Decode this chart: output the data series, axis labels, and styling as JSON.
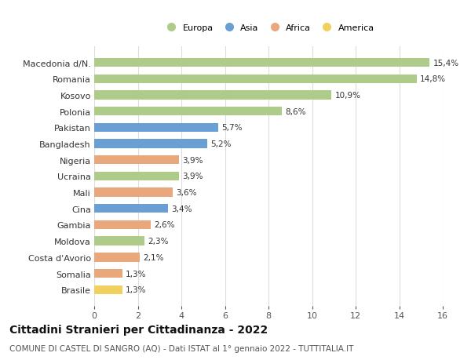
{
  "categories": [
    "Brasile",
    "Somalia",
    "Costa d'Avorio",
    "Moldova",
    "Gambia",
    "Cina",
    "Mali",
    "Ucraina",
    "Nigeria",
    "Bangladesh",
    "Pakistan",
    "Polonia",
    "Kosovo",
    "Romania",
    "Macedonia d/N."
  ],
  "values": [
    1.3,
    1.3,
    2.1,
    2.3,
    2.6,
    3.4,
    3.6,
    3.9,
    3.9,
    5.2,
    5.7,
    8.6,
    10.9,
    14.8,
    15.4
  ],
  "continents": [
    "America",
    "Africa",
    "Africa",
    "Europa",
    "Africa",
    "Asia",
    "Africa",
    "Europa",
    "Africa",
    "Asia",
    "Asia",
    "Europa",
    "Europa",
    "Europa",
    "Europa"
  ],
  "colors": {
    "Europa": "#AECB8A",
    "Asia": "#6A9FD4",
    "Africa": "#E8A87C",
    "America": "#F0D060"
  },
  "legend_labels": [
    "Europa",
    "Asia",
    "Africa",
    "America"
  ],
  "legend_colors": [
    "#AECB8A",
    "#6A9FD4",
    "#E8A87C",
    "#F0D060"
  ],
  "title": "Cittadini Stranieri per Cittadinanza - 2022",
  "subtitle": "COMUNE DI CASTEL DI SANGRO (AQ) - Dati ISTAT al 1° gennaio 2022 - TUTTITALIA.IT",
  "xlim": [
    0,
    16
  ],
  "xticks": [
    0,
    2,
    4,
    6,
    8,
    10,
    12,
    14,
    16
  ],
  "background_color": "#ffffff",
  "grid_color": "#dddddd",
  "bar_height": 0.55,
  "title_fontsize": 10,
  "subtitle_fontsize": 7.5,
  "label_fontsize": 8,
  "tick_fontsize": 8,
  "value_fontsize": 7.5
}
